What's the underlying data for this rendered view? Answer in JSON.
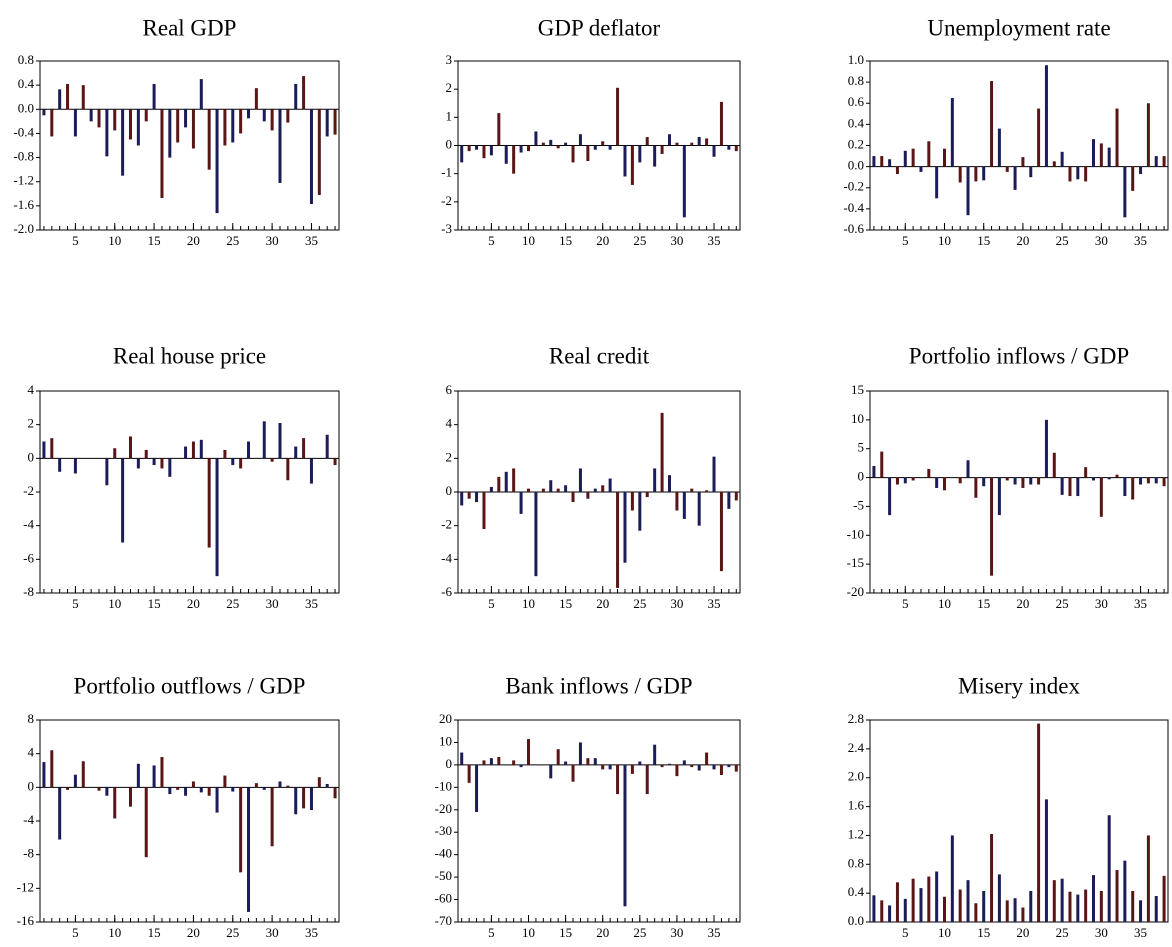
{
  "chart_data": [
    {
      "type": "bar",
      "title": "Real GDP",
      "colors": [
        "#1c1c58",
        "#5a1616"
      ],
      "x": [
        1,
        2,
        3,
        4,
        5,
        6,
        7,
        8,
        9,
        10,
        11,
        12,
        13,
        14,
        15,
        16,
        17,
        18,
        19,
        20,
        21,
        22,
        23,
        24,
        25,
        26,
        27,
        28,
        29,
        30,
        31,
        32,
        33,
        34,
        35,
        36,
        37,
        38
      ],
      "values": [
        -0.1,
        -0.45,
        0.33,
        0.42,
        -0.45,
        0.4,
        -0.2,
        -0.3,
        -0.78,
        -0.35,
        -1.1,
        -0.5,
        -0.6,
        -0.2,
        0.42,
        -1.47,
        -0.8,
        -0.55,
        -0.3,
        -0.65,
        0.5,
        -1.0,
        -1.72,
        -0.6,
        -0.55,
        -0.4,
        -0.15,
        0.35,
        -0.2,
        -0.35,
        -1.22,
        -0.22,
        0.42,
        0.55,
        -1.57,
        -1.42,
        -0.45,
        -0.42
      ],
      "xlim": [
        0.5,
        38.5
      ],
      "xticks": [
        5,
        10,
        15,
        20,
        25,
        30,
        35
      ],
      "ylim": [
        -2,
        0.8
      ],
      "yticks": [
        {
          "value": -2,
          "label": "-2.0"
        },
        -1.6,
        -1.2,
        -0.8,
        -0.4,
        {
          "value": 0,
          "label": "0.0"
        },
        0.4,
        0.8
      ]
    },
    {
      "type": "bar",
      "title": "GDP deflator",
      "colors": [
        "#1c1c58",
        "#5a1616"
      ],
      "x": [
        1,
        2,
        3,
        4,
        5,
        6,
        7,
        8,
        9,
        10,
        11,
        12,
        13,
        14,
        15,
        16,
        17,
        18,
        19,
        20,
        21,
        22,
        23,
        24,
        25,
        26,
        27,
        28,
        29,
        30,
        31,
        32,
        33,
        34,
        35,
        36,
        37,
        38
      ],
      "values": [
        -0.6,
        -0.2,
        -0.15,
        -0.45,
        -0.35,
        1.15,
        -0.65,
        -1.0,
        -0.25,
        -0.2,
        0.5,
        0.1,
        0.2,
        -0.1,
        0.1,
        -0.6,
        0.4,
        -0.55,
        -0.15,
        0.15,
        -0.15,
        2.05,
        -1.1,
        -1.4,
        -0.6,
        0.3,
        -0.75,
        -0.3,
        0.4,
        0.1,
        -2.55,
        0.1,
        0.3,
        0.25,
        -0.4,
        1.55,
        -0.15,
        -0.2
      ],
      "xlim": [
        0.5,
        38.5
      ],
      "xticks": [
        5,
        10,
        15,
        20,
        25,
        30,
        35
      ],
      "ylim": [
        -3,
        3
      ],
      "yticks": [
        -3,
        -2,
        -1,
        0,
        1,
        2,
        3
      ]
    },
    {
      "type": "bar",
      "title": "Unemployment rate",
      "colors": [
        "#1c1c58",
        "#5a1616"
      ],
      "x": [
        1,
        2,
        3,
        4,
        5,
        6,
        7,
        8,
        9,
        10,
        11,
        12,
        13,
        14,
        15,
        16,
        17,
        18,
        19,
        20,
        21,
        22,
        23,
        24,
        25,
        26,
        27,
        28,
        29,
        30,
        31,
        32,
        33,
        34,
        35,
        36,
        37,
        38
      ],
      "values": [
        0.1,
        0.1,
        0.07,
        -0.07,
        0.15,
        0.17,
        -0.05,
        0.24,
        -0.3,
        0.17,
        0.65,
        -0.15,
        -0.46,
        -0.14,
        -0.13,
        0.81,
        0.36,
        -0.05,
        -0.22,
        0.09,
        -0.1,
        0.55,
        0.96,
        0.05,
        0.14,
        -0.14,
        -0.12,
        -0.14,
        0.26,
        0.22,
        0.18,
        0.55,
        -0.48,
        -0.23,
        -0.07,
        0.6,
        0.1,
        0.1
      ],
      "xlim": [
        0.5,
        38.5
      ],
      "xticks": [
        5,
        10,
        15,
        20,
        25,
        30,
        35
      ],
      "ylim": [
        -0.6,
        1.0
      ],
      "yticks": [
        -0.6,
        -0.4,
        -0.2,
        {
          "value": 0,
          "label": "0.0"
        },
        0.2,
        0.4,
        0.6,
        0.8,
        {
          "value": 1,
          "label": "1.0"
        }
      ]
    },
    {
      "type": "bar",
      "title": "Real house price",
      "colors": [
        "#1c1c58",
        "#5a1616"
      ],
      "x": [
        1,
        2,
        3,
        4,
        5,
        6,
        7,
        8,
        9,
        10,
        11,
        12,
        13,
        14,
        15,
        16,
        17,
        18,
        19,
        20,
        21,
        22,
        23,
        24,
        25,
        26,
        27,
        28,
        29,
        30,
        31,
        32,
        33,
        34,
        35,
        36,
        37,
        38
      ],
      "values": [
        1.0,
        1.2,
        -0.8,
        0,
        -0.9,
        0,
        0,
        0,
        -1.6,
        0.6,
        -5.0,
        1.3,
        -0.6,
        0.5,
        -0.4,
        -0.6,
        -1.1,
        0,
        0.7,
        1.0,
        1.1,
        -5.3,
        -7.0,
        0.5,
        -0.4,
        -0.6,
        1.0,
        0,
        2.2,
        -0.2,
        2.1,
        -1.3,
        0.7,
        1.2,
        -1.5,
        0,
        1.4,
        -0.4
      ],
      "xlim": [
        0.5,
        38.5
      ],
      "xticks": [
        5,
        10,
        15,
        20,
        25,
        30,
        35
      ],
      "ylim": [
        -8,
        4
      ],
      "yticks": [
        -8,
        -6,
        -4,
        -2,
        0,
        2,
        4
      ]
    },
    {
      "type": "bar",
      "title": "Real credit",
      "colors": [
        "#1c1c58",
        "#5a1616"
      ],
      "x": [
        1,
        2,
        3,
        4,
        5,
        6,
        7,
        8,
        9,
        10,
        11,
        12,
        13,
        14,
        15,
        16,
        17,
        18,
        19,
        20,
        21,
        22,
        23,
        24,
        25,
        26,
        27,
        28,
        29,
        30,
        31,
        32,
        33,
        34,
        35,
        36,
        37,
        38
      ],
      "values": [
        -0.8,
        -0.4,
        -0.6,
        -2.2,
        0.3,
        0.9,
        1.2,
        1.4,
        -1.3,
        0.2,
        -5.0,
        0.2,
        0.7,
        0.2,
        0.4,
        -0.6,
        1.4,
        -0.4,
        0.2,
        0.4,
        0.8,
        -5.7,
        -4.2,
        -1.1,
        -2.3,
        -0.3,
        1.4,
        4.7,
        1.0,
        -1.1,
        -1.6,
        0.2,
        -2.0,
        0.1,
        2.1,
        -4.7,
        -1.0,
        -0.5
      ],
      "xlim": [
        0.5,
        38.5
      ],
      "xticks": [
        5,
        10,
        15,
        20,
        25,
        30,
        35
      ],
      "ylim": [
        -6,
        6
      ],
      "yticks": [
        -6,
        -4,
        -2,
        0,
        2,
        4,
        6
      ]
    },
    {
      "type": "bar",
      "title": "Portfolio inflows / GDP",
      "colors": [
        "#1c1c58",
        "#5a1616"
      ],
      "x": [
        1,
        2,
        3,
        4,
        5,
        6,
        7,
        8,
        9,
        10,
        11,
        12,
        13,
        14,
        15,
        16,
        17,
        18,
        19,
        20,
        21,
        22,
        23,
        24,
        25,
        26,
        27,
        28,
        29,
        30,
        31,
        32,
        33,
        34,
        35,
        36,
        37,
        38
      ],
      "values": [
        2.0,
        4.5,
        -6.5,
        -1.2,
        -1.0,
        -0.5,
        0,
        1.5,
        -1.8,
        -2.2,
        0,
        -1.0,
        3.0,
        -3.5,
        -1.5,
        -17.0,
        -6.5,
        -0.5,
        -1.2,
        -1.8,
        -1.2,
        -1.2,
        10.0,
        4.3,
        -3.0,
        -3.2,
        -3.2,
        1.8,
        -0.5,
        -6.8,
        -0.3,
        0.5,
        -3.2,
        -3.8,
        -1.2,
        -1.0,
        -1.0,
        -1.5
      ],
      "xlim": [
        0.5,
        38.5
      ],
      "xticks": [
        5,
        10,
        15,
        20,
        25,
        30,
        35
      ],
      "ylim": [
        -20,
        15
      ],
      "yticks": [
        -20,
        -15,
        -10,
        -5,
        0,
        5,
        10,
        15
      ]
    },
    {
      "type": "bar",
      "title": "Portfolio outflows / GDP",
      "colors": [
        "#1c1c58",
        "#5a1616"
      ],
      "x": [
        1,
        2,
        3,
        4,
        5,
        6,
        7,
        8,
        9,
        10,
        11,
        12,
        13,
        14,
        15,
        16,
        17,
        18,
        19,
        20,
        21,
        22,
        23,
        24,
        25,
        26,
        27,
        28,
        29,
        30,
        31,
        32,
        33,
        34,
        35,
        36,
        37,
        38
      ],
      "values": [
        3.0,
        4.4,
        -6.2,
        -0.3,
        1.5,
        3.1,
        0,
        -0.4,
        -1.0,
        -3.7,
        0,
        -2.3,
        2.8,
        -8.3,
        2.6,
        3.6,
        -0.8,
        -0.3,
        -1.0,
        0.7,
        -0.6,
        -1.0,
        -3.0,
        1.4,
        -0.5,
        -10.1,
        -14.8,
        0.5,
        -0.3,
        -7.0,
        0.7,
        0.2,
        -3.2,
        -2.5,
        -2.7,
        1.2,
        0.4,
        -1.3
      ],
      "xlim": [
        0.5,
        38.5
      ],
      "xticks": [
        5,
        10,
        15,
        20,
        25,
        30,
        35
      ],
      "ylim": [
        -16,
        8
      ],
      "yticks": [
        -16,
        -12,
        -8,
        -4,
        0,
        4,
        8
      ]
    },
    {
      "type": "bar",
      "title": "Bank inflows / GDP",
      "colors": [
        "#1c1c58",
        "#5a1616"
      ],
      "x": [
        1,
        2,
        3,
        4,
        5,
        6,
        7,
        8,
        9,
        10,
        11,
        12,
        13,
        14,
        15,
        16,
        17,
        18,
        19,
        20,
        21,
        22,
        23,
        24,
        25,
        26,
        27,
        28,
        29,
        30,
        31,
        32,
        33,
        34,
        35,
        36,
        37,
        38
      ],
      "values": [
        5.5,
        -8,
        -21,
        2,
        3,
        3.5,
        0,
        2,
        -1,
        11.5,
        0,
        0,
        -6,
        7,
        1.5,
        -7.5,
        10,
        3,
        3,
        -2,
        -2,
        -13,
        -63,
        -4,
        1.5,
        -13,
        9,
        -1,
        0.5,
        -5,
        2,
        -1,
        -2.5,
        5.5,
        -2,
        -4.5,
        -1,
        -3
      ],
      "xlim": [
        0.5,
        38.5
      ],
      "xticks": [
        5,
        10,
        15,
        20,
        25,
        30,
        35
      ],
      "ylim": [
        -70,
        20
      ],
      "yticks": [
        -70,
        -60,
        -50,
        -40,
        -30,
        -20,
        -10,
        0,
        10,
        20
      ]
    },
    {
      "type": "bar",
      "title": "Misery index",
      "colors": [
        "#1c1c58",
        "#5a1616"
      ],
      "x": [
        1,
        2,
        3,
        4,
        5,
        6,
        7,
        8,
        9,
        10,
        11,
        12,
        13,
        14,
        15,
        16,
        17,
        18,
        19,
        20,
        21,
        22,
        23,
        24,
        25,
        26,
        27,
        28,
        29,
        30,
        31,
        32,
        33,
        34,
        35,
        36,
        37,
        38
      ],
      "values": [
        0.37,
        0.3,
        0.23,
        0.55,
        0.32,
        0.6,
        0.47,
        0.63,
        0.7,
        0.35,
        1.2,
        0.45,
        0.58,
        0.26,
        0.43,
        1.22,
        0.66,
        0.3,
        0.33,
        0.2,
        0.43,
        2.75,
        1.7,
        0.58,
        0.6,
        0.42,
        0.38,
        0.45,
        0.65,
        0.43,
        1.48,
        0.72,
        0.85,
        0.43,
        0.3,
        1.2,
        0.36,
        0.64
      ],
      "xlim": [
        0.5,
        38.5
      ],
      "xticks": [
        5,
        10,
        15,
        20,
        25,
        30,
        35
      ],
      "ylim": [
        0,
        2.8
      ],
      "yticks": [
        {
          "value": 0,
          "label": "0.0"
        },
        0.4,
        0.8,
        1.2,
        1.6,
        {
          "value": 2,
          "label": "2.0"
        },
        2.4,
        2.8
      ]
    }
  ]
}
